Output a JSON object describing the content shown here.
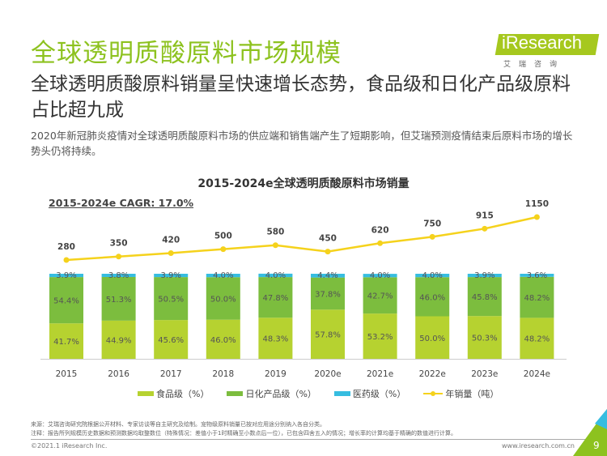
{
  "header": {
    "title": "全球透明质酸原料市场规模",
    "subtitle": "全球透明质酸原料销量呈快速增长态势，食品级和日化产品级原料占比超九成",
    "description": "2020年新冠肺炎疫情对全球透明质酸原料市场的供应端和销售端产生了短期影响，但艾瑞预测疫情结束后原料市场的增长势头仍将持续。",
    "logo_text": "iResearch",
    "logo_cn": "艾瑞咨询"
  },
  "chart_data": {
    "type": "bar",
    "title": "2015-2024e全球透明质酸原料市场销量",
    "annotation": "2015-2024e CAGR: 17.0%",
    "categories": [
      "2015",
      "2016",
      "2017",
      "2018",
      "2019",
      "2020e",
      "2021e",
      "2022e",
      "2023e",
      "2024e"
    ],
    "stacked": true,
    "series": [
      {
        "name": "食品级（%）",
        "type": "bar",
        "color": "#b6d230",
        "values": [
          41.7,
          44.9,
          45.6,
          46.0,
          48.3,
          57.8,
          53.2,
          50.0,
          50.3,
          48.2
        ]
      },
      {
        "name": "日化产品级（%）",
        "type": "bar",
        "color": "#7cbd3e",
        "values": [
          54.4,
          51.3,
          50.5,
          50.0,
          47.8,
          37.8,
          42.7,
          46.0,
          45.8,
          48.2
        ]
      },
      {
        "name": "医药级（%）",
        "type": "bar",
        "color": "#36bde0",
        "values": [
          3.9,
          3.8,
          3.9,
          4.0,
          4.0,
          4.4,
          4.0,
          4.0,
          3.9,
          3.6
        ]
      },
      {
        "name": "年销量（吨）",
        "type": "line",
        "color": "#f5d21c",
        "values": [
          280,
          350,
          420,
          500,
          580,
          450,
          620,
          750,
          915,
          1150
        ]
      }
    ],
    "legend": "bottom",
    "grid": false
  },
  "footer": {
    "source": "来源：艾瑞咨询研究院根据公开材料、专家访谈等自主研究及绘制。宠物级原料销量已按对应用途分别纳入各自分类。",
    "note": "注释：报告所列规模历史数据和预测数据均取整数位（特殊情况：差值小于1时精确至小数点后一位），已包含四舍五入的情况；增长率的计算均基于精确的数值进行计算。",
    "copyright": "©2021.1 iResearch Inc.",
    "url": "www.iresearch.com.cn",
    "page": "9"
  }
}
